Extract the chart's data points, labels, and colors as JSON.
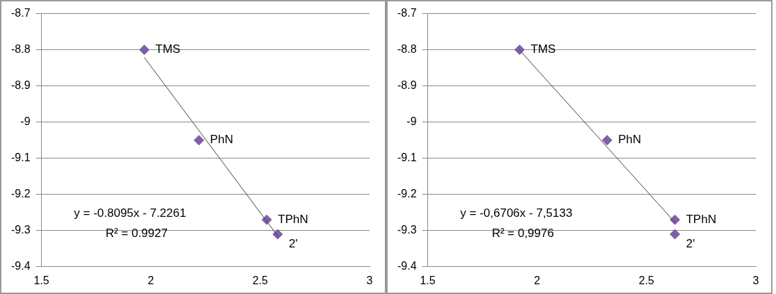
{
  "chart_data": [
    {
      "type": "scatter",
      "x": [
        1.97,
        2.22,
        2.53,
        2.58
      ],
      "values": [
        -8.8,
        -9.05,
        -9.27,
        -9.31
      ],
      "color": "#7f60a8",
      "marker": "diamond",
      "xlim": [
        1.5,
        3
      ],
      "xticks": [
        1.5,
        2,
        2.5,
        3
      ],
      "ylim": [
        -9.4,
        -8.7
      ],
      "yticks": [
        -9.4,
        -9.3,
        -9.2,
        -9.1,
        -9,
        -8.9,
        -8.8,
        -8.7
      ],
      "grid": "y",
      "legend": false,
      "series": [
        {
          "type": "line",
          "x": [
            1.97,
            2.58
          ],
          "values": [
            -8.821,
            -9.315
          ],
          "color": "#404040",
          "marker": "none",
          "line_style": "solid"
        }
      ],
      "annotations": [
        {
          "text": "TMS",
          "x": 1.97,
          "y": -8.8
        },
        {
          "text": "PhN",
          "x": 2.22,
          "y": -9.05
        },
        {
          "text": "TPhN",
          "x": 2.53,
          "y": -9.27
        },
        {
          "text": "2'",
          "x": 2.58,
          "y": -9.31
        },
        "y = -0.8095x - 7.2261",
        "R² = 0.9927"
      ]
    },
    {
      "type": "scatter",
      "x": [
        1.92,
        2.32,
        2.63,
        2.63
      ],
      "values": [
        -8.8,
        -9.05,
        -9.27,
        -9.31
      ],
      "color": "#7f60a8",
      "marker": "diamond",
      "xlim": [
        1.5,
        3
      ],
      "xticks": [
        1.5,
        2,
        2.5,
        3
      ],
      "ylim": [
        -9.4,
        -8.7
      ],
      "yticks": [
        -9.4,
        -9.3,
        -9.2,
        -9.1,
        -9,
        -8.9,
        -8.8,
        -8.7
      ],
      "grid": "y",
      "legend": false,
      "series": [
        {
          "type": "line",
          "x": [
            1.92,
            2.63
          ],
          "values": [
            -8.801,
            -9.277
          ],
          "color": "#404040",
          "marker": "none",
          "line_style": "solid"
        }
      ],
      "annotations": [
        {
          "text": "TMS",
          "x": 1.92,
          "y": -8.8
        },
        {
          "text": "PhN",
          "x": 2.32,
          "y": -9.05
        },
        {
          "text": "TPhN",
          "x": 2.63,
          "y": -9.27
        },
        {
          "text": "2'",
          "x": 2.63,
          "y": -9.31
        },
        "y = -0,6706x - 7,5133",
        "R² = 0,9976"
      ]
    }
  ]
}
